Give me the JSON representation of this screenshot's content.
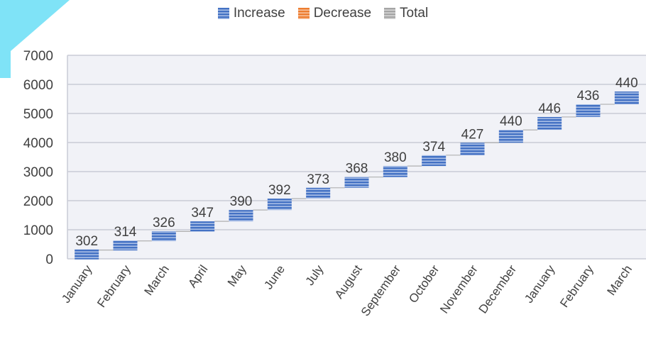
{
  "colors": {
    "increase": "#4472c4",
    "decrease": "#ed7d31",
    "total": "#a5a5a5",
    "plot_bg": "#f1f2f7",
    "grid": "#c9cbd6",
    "connector": "#b0b0b0",
    "accent_shape": "#7fe3f7"
  },
  "chart_data": {
    "type": "bar",
    "subtype": "waterfall",
    "categories": [
      "January",
      "February",
      "March",
      "April",
      "May",
      "June",
      "July",
      "August",
      "September",
      "October",
      "November",
      "December",
      "January",
      "February",
      "March"
    ],
    "values": [
      302,
      314,
      326,
      347,
      390,
      392,
      373,
      368,
      380,
      374,
      427,
      440,
      446,
      436,
      440
    ],
    "data_labels": [
      "302",
      "314",
      "326",
      "347",
      "390",
      "392",
      "373",
      "368",
      "380",
      "374",
      "427",
      "440",
      "446",
      "436",
      "440"
    ],
    "legend": [
      "Increase",
      "Decrease",
      "Total"
    ],
    "legend_position": "top-center",
    "ylim": [
      0,
      7000
    ],
    "yticks": [
      "0",
      "1000",
      "2000",
      "3000",
      "4000",
      "5000",
      "6000",
      "7000"
    ],
    "grid": true,
    "title": "",
    "xlabel": "",
    "ylabel": ""
  }
}
